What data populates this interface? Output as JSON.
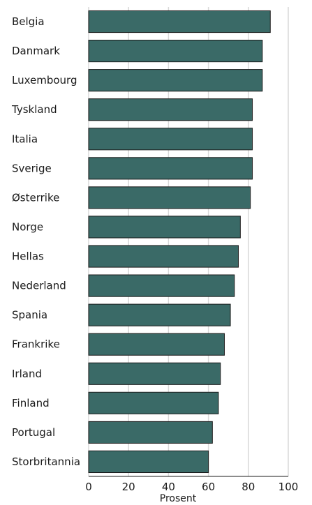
{
  "chart_data": {
    "type": "bar",
    "orientation": "horizontal",
    "categories": [
      "Belgia",
      "Danmark",
      "Luxembourg",
      "Tyskland",
      "Italia",
      "Sverige",
      "Østerrike",
      "Norge",
      "Hellas",
      "Nederland",
      "Spania",
      "Frankrike",
      "Irland",
      "Finland",
      "Portugal",
      "Storbritannia"
    ],
    "values": [
      91,
      87,
      87,
      82,
      82,
      82,
      81,
      76,
      75,
      73,
      71,
      68,
      66,
      65,
      62,
      60
    ],
    "xlabel": "Prosent",
    "xlim": [
      0,
      100
    ],
    "xticks": [
      "0",
      "20",
      "40",
      "60",
      "80",
      "100"
    ],
    "grid": "vertical",
    "bar_color": "#3a6a67",
    "bar_edge_color": "#1a1a1a"
  }
}
